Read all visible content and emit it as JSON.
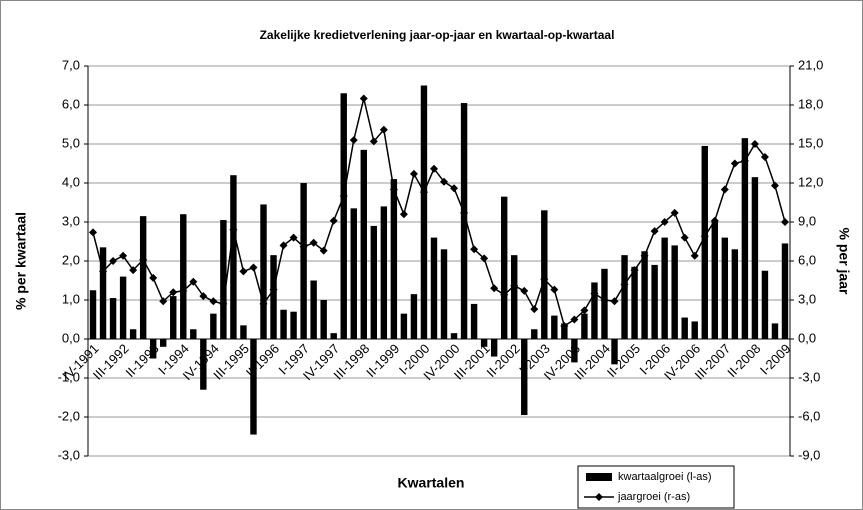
{
  "chart_data": {
    "type": "bar-line",
    "title": "Zakelijke kredietverlening jaar-op-jaar en kwartaal-op-kwartaal",
    "x_label": "Kwartalen",
    "y_label": "% per kwartaal",
    "y2_label": "% per jaar",
    "categories": [
      "IV-1991",
      null,
      null,
      "III-1992",
      null,
      null,
      "II-1993",
      null,
      null,
      "I-1994",
      null,
      null,
      "IV-1994",
      null,
      null,
      "III-1995",
      null,
      null,
      "II-1996",
      null,
      null,
      "I-1997",
      null,
      null,
      "IV-1997",
      null,
      null,
      "III-1998",
      null,
      null,
      "II-1999",
      null,
      null,
      "I-2000",
      null,
      null,
      "IV-2000",
      null,
      null,
      "III-2001",
      null,
      null,
      "II-2002",
      null,
      null,
      "I-2003",
      null,
      null,
      "IV-2003",
      null,
      null,
      "III-2004",
      null,
      null,
      "II-2005",
      null,
      null,
      "I-2006",
      null,
      null,
      "IV-2006",
      null,
      null,
      "III-2007",
      null,
      null,
      "II-2008",
      null,
      null,
      "I-2009"
    ],
    "series": [
      {
        "name": "kwartaalgroei (l-as)",
        "type": "bar",
        "color": "#000000",
        "values": [
          1.25,
          2.35,
          1.05,
          1.6,
          0.25,
          3.15,
          -0.5,
          -0.2,
          1.1,
          3.2,
          0.25,
          -1.3,
          0.65,
          3.05,
          4.2,
          0.35,
          -2.45,
          3.45,
          2.15,
          0.75,
          0.7,
          4.0,
          1.5,
          1.0,
          0.15,
          6.3,
          3.35,
          4.85,
          2.9,
          3.4,
          4.1,
          0.65,
          1.15,
          6.5,
          2.6,
          2.3,
          0.15,
          6.05,
          0.9,
          -0.2,
          -0.45,
          3.65,
          2.15,
          -1.95,
          0.25,
          3.3,
          0.6,
          0.4,
          -0.6,
          0.65,
          1.45,
          1.8,
          -0.65,
          2.15,
          1.85,
          2.25,
          1.9,
          2.6,
          2.4,
          0.55,
          0.45,
          4.95,
          3.05,
          2.6,
          2.3,
          5.15,
          4.15,
          1.75,
          0.4,
          2.45
        ]
      },
      {
        "name": "jaargroei (r-as)",
        "type": "line",
        "axis": "y2",
        "color": "#000000",
        "values": [
          8.2,
          5.2,
          6.0,
          6.4,
          5.3,
          6.1,
          4.7,
          2.9,
          3.6,
          3.7,
          4.4,
          3.3,
          2.9,
          2.7,
          8.4,
          5.2,
          5.5,
          2.7,
          3.8,
          7.2,
          7.8,
          7.1,
          7.4,
          6.8,
          9.1,
          11.0,
          15.3,
          18.5,
          15.2,
          16.1,
          11.5,
          9.6,
          12.7,
          11.3,
          13.1,
          12.1,
          11.6,
          9.7,
          6.9,
          6.2,
          3.9,
          3.4,
          4.1,
          3.7,
          2.3,
          4.6,
          3.8,
          1.0,
          1.5,
          2.2,
          3.5,
          3.0,
          2.9,
          4.2,
          5.3,
          6.4,
          8.3,
          9.0,
          9.7,
          7.8,
          6.4,
          7.9,
          9.1,
          11.5,
          13.5,
          13.7,
          15.0,
          14.0,
          11.8,
          9.0
        ]
      }
    ],
    "ylim": [
      -3,
      7
    ],
    "yticks": [
      {
        "value": -3,
        "label": "-3,0"
      },
      {
        "value": -2,
        "label": "-2,0"
      },
      {
        "value": -1,
        "label": "-1,0"
      },
      {
        "value": 0,
        "label": "0,0"
      },
      {
        "value": 1,
        "label": "1,0"
      },
      {
        "value": 2,
        "label": "2,0"
      },
      {
        "value": 3,
        "label": "3,0"
      },
      {
        "value": 4,
        "label": "4,0"
      },
      {
        "value": 5,
        "label": "5,0"
      },
      {
        "value": 6,
        "label": "6,0"
      },
      {
        "value": 7,
        "label": "7,0"
      }
    ],
    "y2lim": [
      -9,
      21
    ],
    "y2ticks": [
      {
        "value": -9,
        "label": "-9,0"
      },
      {
        "value": -6,
        "label": "-6,0"
      },
      {
        "value": -3,
        "label": "-3,0"
      },
      {
        "value": 0,
        "label": "0,0"
      },
      {
        "value": 3,
        "label": "3,0"
      },
      {
        "value": 6,
        "label": "6,0"
      },
      {
        "value": 9,
        "label": "9,0"
      },
      {
        "value": 12,
        "label": "12,0"
      },
      {
        "value": 15,
        "label": "15,0"
      },
      {
        "value": 18,
        "label": "18,0"
      },
      {
        "value": 21,
        "label": "21,0"
      }
    ],
    "grid": true,
    "legend": "bottom-right"
  }
}
